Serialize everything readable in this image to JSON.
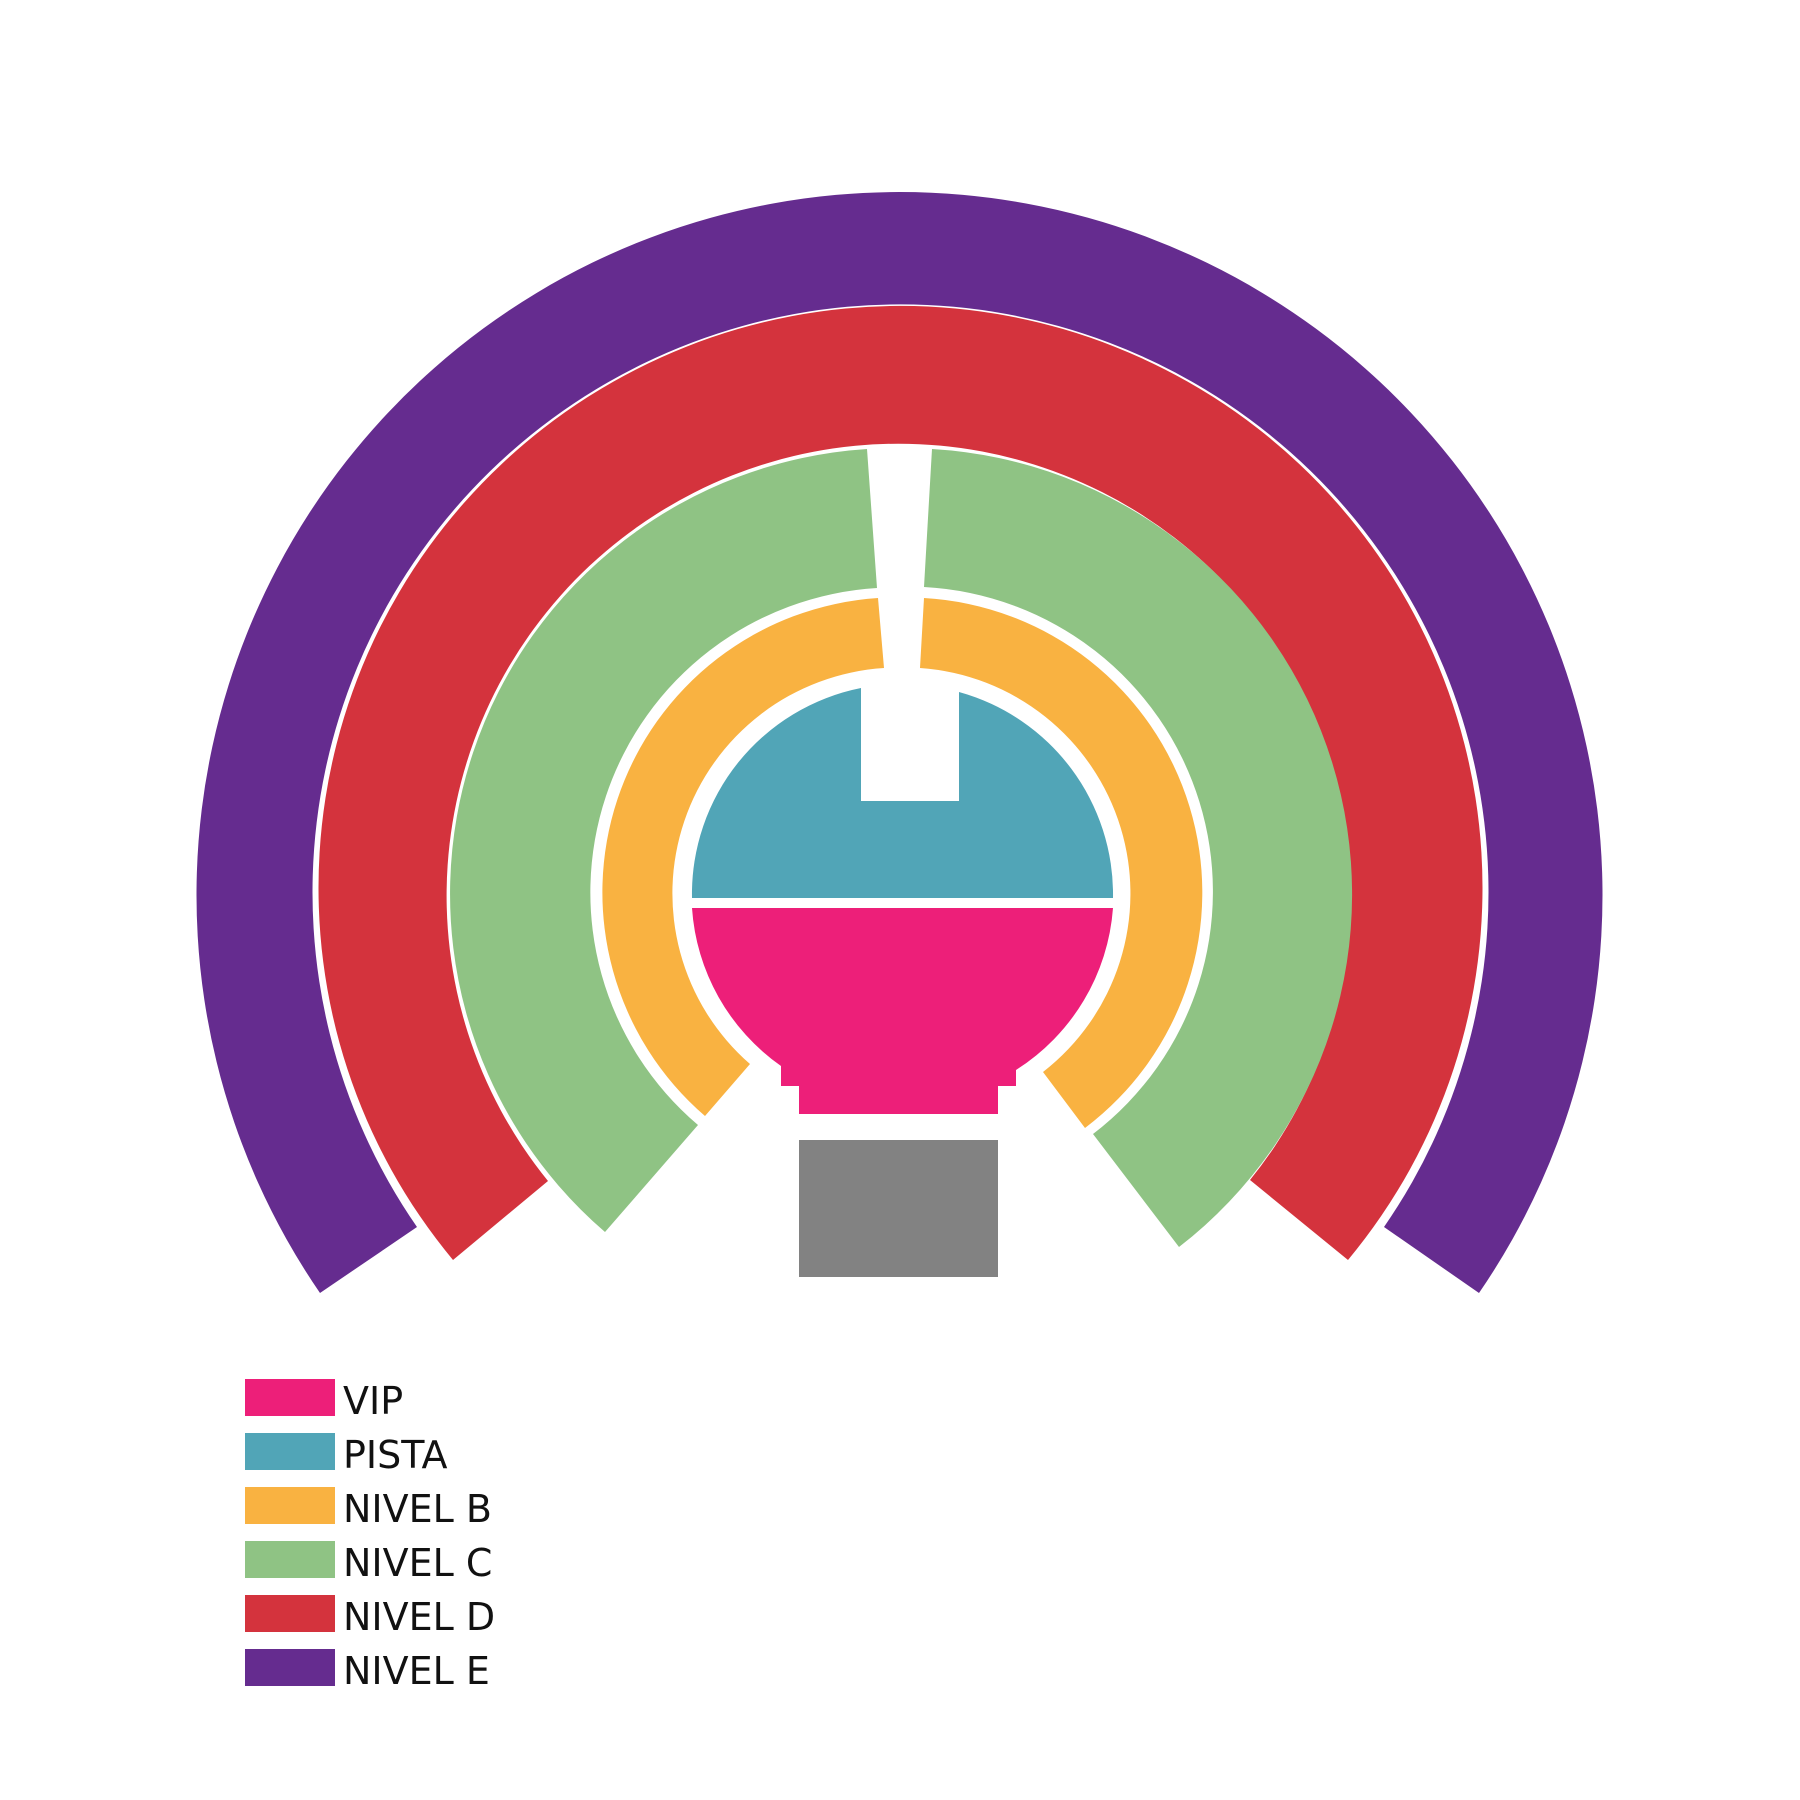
{
  "sections": [
    {
      "id": "vip",
      "label": "VIP",
      "color": "#ED1F79"
    },
    {
      "id": "pista",
      "label": "PISTA",
      "color": "#51A5B7"
    },
    {
      "id": "nivel-b",
      "label": "NIVEL B",
      "color": "#F9B241"
    },
    {
      "id": "nivel-c",
      "label": "NIVEL C",
      "color": "#8FC384"
    },
    {
      "id": "nivel-d",
      "label": "NIVEL D",
      "color": "#D4333D"
    },
    {
      "id": "nivel-e",
      "label": "NIVEL E",
      "color": "#652C8F"
    }
  ],
  "stage": {
    "color": "#828282"
  }
}
